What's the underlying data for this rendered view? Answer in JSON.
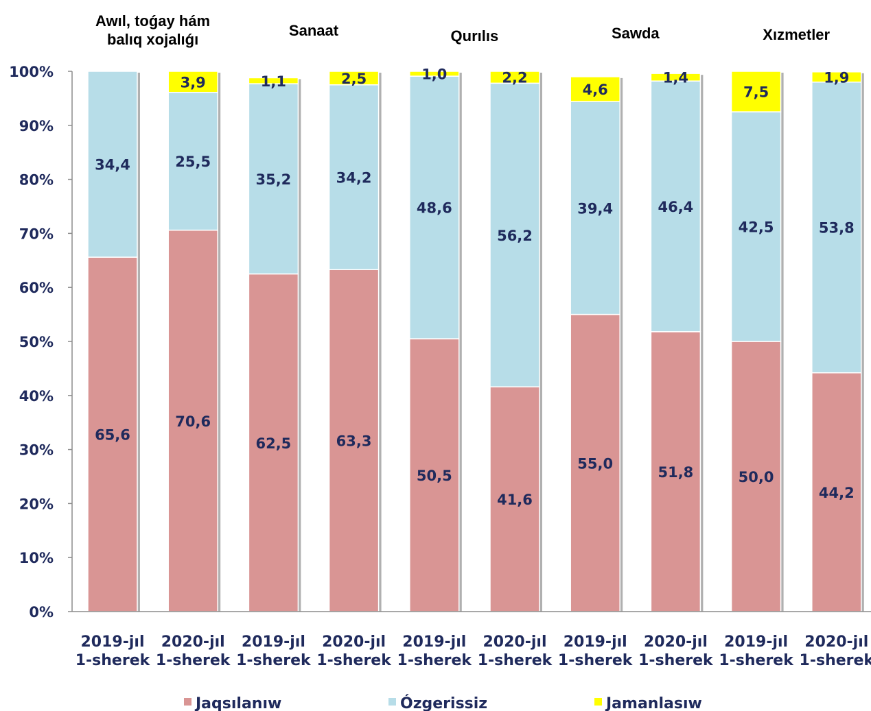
{
  "chart_data": {
    "type": "bar",
    "stacked": true,
    "percent_stacked": true,
    "group_titles": [
      "Awıl, toǵay hám\nbalıq xojalıǵı",
      "Sanaat",
      "Qurılıs",
      "Sawda",
      "Xızmetler"
    ],
    "categories": [
      "2019-jıl\n1-sherek",
      "2020-jıl\n1-sherek",
      "2019-jıl\n1-sherek",
      "2020-jıl\n1-sherek",
      "2019-jıl\n1-sherek",
      "2020-jıl\n1-sherek",
      "2019-jıl\n1-sherek",
      "2020-jıl\n1-sherek",
      "2019-jıl\n1-sherek",
      "2020-jıl\n1-sherek"
    ],
    "series": [
      {
        "name": "Jaqsılanıw",
        "color": "#d99594",
        "values": [
          65.6,
          70.6,
          62.5,
          63.3,
          50.5,
          41.6,
          55.0,
          51.8,
          50.0,
          44.2
        ]
      },
      {
        "name": "Ózgerissiz",
        "color": "#b7dde8",
        "values": [
          34.4,
          25.5,
          35.2,
          34.2,
          48.6,
          56.2,
          39.4,
          46.4,
          42.5,
          53.8
        ]
      },
      {
        "name": "Jamanlasıw",
        "color": "#ffff00",
        "values": [
          null,
          3.9,
          1.1,
          2.5,
          1.0,
          2.2,
          4.6,
          1.4,
          7.5,
          1.9
        ]
      }
    ],
    "y_ticks": [
      "0%",
      "10%",
      "20%",
      "30%",
      "40%",
      "50%",
      "60%",
      "70%",
      "80%",
      "90%",
      "100%"
    ],
    "ylim": [
      0,
      100
    ],
    "grid": false,
    "legend_position": "bottom"
  }
}
